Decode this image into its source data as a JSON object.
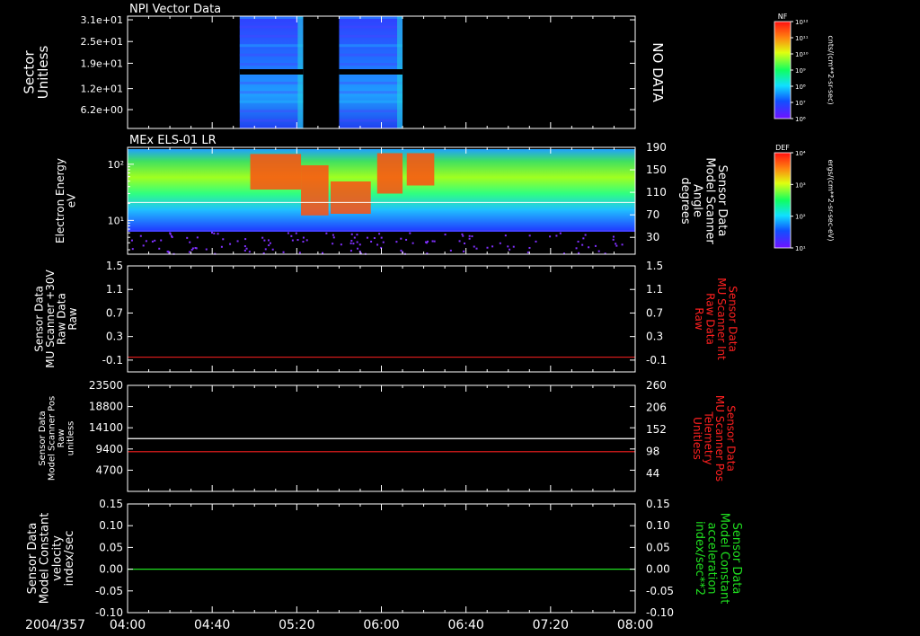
{
  "colors": {
    "background": "#000000",
    "axis": "#ffffff",
    "red_trace": "#ff2020",
    "green_trace": "#20e020",
    "white_trace": "#ffffff"
  },
  "chart_data": [
    {
      "type": "heatmap",
      "title": "NPI Vector Data",
      "ylabel": [
        "Sector",
        "Unitless"
      ],
      "yticks": [
        "3.1e+01",
        "2.5e+01",
        "1.9e+01",
        "1.2e+01",
        "6.2e+00"
      ],
      "ytick_values": [
        31,
        25,
        19,
        12,
        6.2
      ],
      "ylim": [
        1,
        32
      ],
      "xlim": [
        "04:00",
        "08:00"
      ],
      "right_note": "NO DATA",
      "data_blocks": [
        {
          "x_start": "04:53",
          "x_end": "05:23",
          "y_range": [
            1,
            32
          ]
        },
        {
          "x_start": "05:40",
          "x_end": "06:10",
          "y_range": [
            1,
            32
          ]
        }
      ],
      "colorbar": {
        "label": "NF",
        "units": "cnts/(cm**2-sr-sec)",
        "tick_labels": [
          "10¹²",
          "10¹¹",
          "10¹⁰",
          "10⁹",
          "10⁸",
          "10⁷",
          "10⁶"
        ]
      }
    },
    {
      "type": "heatmap",
      "title": "MEx ELS-01 LR",
      "ylabel": [
        "Electron Energy",
        "eV"
      ],
      "yticks": [
        "10²",
        "10¹"
      ],
      "yscale": "log",
      "ylim": [
        2.5,
        200
      ],
      "right_ylabel": [
        "Sensor Data",
        "Model Scanner",
        "Angle",
        "degrees"
      ],
      "right_yticks": [
        "190",
        "150",
        "110",
        "70",
        "30"
      ],
      "right_ylim": [
        0,
        190
      ],
      "xlim": [
        "04:00",
        "08:00"
      ],
      "overlay_trace": {
        "color": "#ffffff",
        "value": 92
      },
      "colorbar": {
        "label": "DEF",
        "units": "ergs/(cm**2-sr-sec-eV)",
        "tick_labels": [
          "10⁴",
          "10³",
          "10²",
          "10¹"
        ]
      }
    },
    {
      "type": "line",
      "ylabel": [
        "Sensor Data",
        "MU Scanner +30V",
        "Raw Data",
        "Raw"
      ],
      "yticks": [
        "1.5",
        "1.1",
        "0.7",
        "0.3",
        "-0.1"
      ],
      "ylim": [
        -0.3,
        1.5
      ],
      "right_ylabel": [
        "Sensor Data",
        "MU Scanner Int",
        "Raw Data",
        "Raw"
      ],
      "right_yticks": [
        "1.5",
        "1.1",
        "0.7",
        "0.3",
        "-0.1"
      ],
      "series": [
        {
          "color": "#ff2020",
          "x": [
            "04:00",
            "08:00"
          ],
          "y": [
            -0.05,
            -0.05
          ]
        }
      ]
    },
    {
      "type": "line",
      "ylabel": [
        "Sensor Data",
        "Model Scanner Pos",
        "Raw",
        "unitless"
      ],
      "yticks": [
        "23500",
        "18800",
        "14100",
        "9400",
        "4700"
      ],
      "ylim": [
        0,
        23500
      ],
      "right_ylabel": [
        "Sensor Data",
        "MU Scanner Pos",
        "Telemetry",
        "Unitless"
      ],
      "right_yticks": [
        "260",
        "206",
        "152",
        "98",
        "44"
      ],
      "right_ylim": [
        0,
        260
      ],
      "series": [
        {
          "color": "#ffffff",
          "x": [
            "04:00",
            "08:00"
          ],
          "y": [
            11700,
            11700
          ]
        },
        {
          "color": "#ff2020",
          "x": [
            "04:00",
            "08:00"
          ],
          "y": [
            8800,
            8800
          ]
        }
      ]
    },
    {
      "type": "line",
      "ylabel": [
        "Sensor Data",
        "Model Constant",
        "velocity",
        "index/sec"
      ],
      "yticks": [
        "0.15",
        "0.10",
        "0.05",
        "0.00",
        "-0.05",
        "-0.10"
      ],
      "ylim": [
        -0.1,
        0.15
      ],
      "right_ylabel": [
        "Sensor Data",
        "Model Constant",
        "acceleration",
        "index/sec**2"
      ],
      "right_yticks": [
        "0.15",
        "0.10",
        "0.05",
        "0.00",
        "-0.05",
        "-0.10"
      ],
      "series": [
        {
          "color": "#20e020",
          "x": [
            "04:00",
            "08:00"
          ],
          "y": [
            0,
            0
          ]
        }
      ]
    }
  ],
  "xaxis": {
    "date_label": "2004/357",
    "ticks": [
      "04:00",
      "04:40",
      "05:20",
      "06:00",
      "06:40",
      "07:20",
      "08:00"
    ]
  }
}
